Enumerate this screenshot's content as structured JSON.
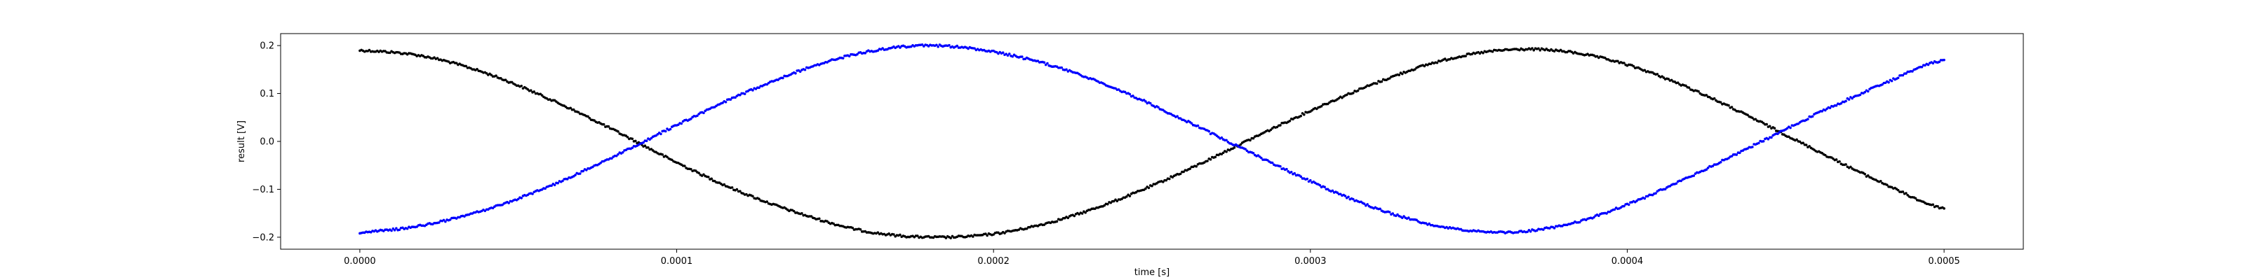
{
  "chart_data": {
    "type": "scatter",
    "xlabel": "time [s]",
    "ylabel": "result [V]",
    "xlim": [
      -2.5e-05,
      0.000525
    ],
    "ylim": [
      -0.225,
      0.225
    ],
    "x_ticks": [
      {
        "value": 0.0,
        "label": "0.0000"
      },
      {
        "value": 0.0001,
        "label": "0.0001"
      },
      {
        "value": 0.0002,
        "label": "0.0002"
      },
      {
        "value": 0.0003,
        "label": "0.0003"
      },
      {
        "value": 0.0004,
        "label": "0.0004"
      },
      {
        "value": 0.0005,
        "label": "0.0005"
      }
    ],
    "y_ticks": [
      {
        "value": 0.2,
        "label": "0.2"
      },
      {
        "value": 0.1,
        "label": "0.1"
      },
      {
        "value": 0.0,
        "label": "0.0"
      },
      {
        "value": -0.1,
        "label": "−0.1"
      },
      {
        "value": -0.2,
        "label": "−0.2"
      }
    ],
    "grid": false,
    "series": [
      {
        "color": "#000000",
        "x": [
          0.0,
          2e-05,
          4e-05,
          6e-05,
          8e-05,
          0.0001,
          0.00012,
          0.00014,
          0.00016,
          0.00018,
          0.0002,
          0.00022,
          0.00024,
          0.00026,
          0.00028,
          0.0003,
          0.00032,
          0.00034,
          0.00036,
          0.00038,
          0.0004,
          0.00042,
          0.00044,
          0.00046,
          0.00048,
          0.0005
        ],
        "y": [
          0.19,
          0.178,
          0.142,
          0.088,
          0.024,
          -0.044,
          -0.105,
          -0.153,
          -0.188,
          -0.2,
          -0.193,
          -0.165,
          -0.12,
          -0.063,
          0.001,
          0.064,
          0.12,
          0.166,
          0.19,
          0.188,
          0.16,
          0.11,
          0.047,
          -0.02,
          -0.085,
          -0.14
        ]
      },
      {
        "color": "#0000ff",
        "x": [
          0.0,
          2e-05,
          4e-05,
          6e-05,
          8e-05,
          0.0001,
          0.00012,
          0.00014,
          0.00016,
          0.00018,
          0.0002,
          0.00022,
          0.00024,
          0.00026,
          0.00028,
          0.0003,
          0.00032,
          0.00034,
          0.00036,
          0.00038,
          0.0004,
          0.00042,
          0.00044,
          0.00046,
          0.00048,
          0.0005
        ],
        "y": [
          -0.19,
          -0.175,
          -0.142,
          -0.093,
          -0.032,
          0.034,
          0.097,
          0.15,
          0.187,
          0.2,
          0.187,
          0.155,
          0.106,
          0.045,
          -0.02,
          -0.083,
          -0.138,
          -0.176,
          -0.19,
          -0.175,
          -0.132,
          -0.073,
          -0.008,
          0.058,
          0.118,
          0.17
        ]
      }
    ]
  }
}
